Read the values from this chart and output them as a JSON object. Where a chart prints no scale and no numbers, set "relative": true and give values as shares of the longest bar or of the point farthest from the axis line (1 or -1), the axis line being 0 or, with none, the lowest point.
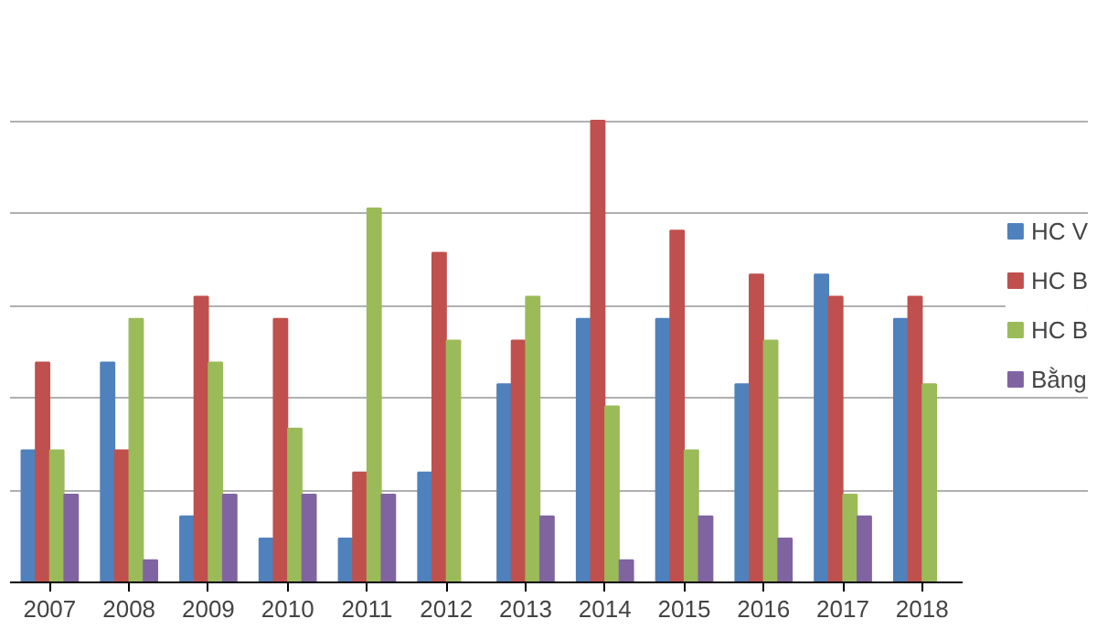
{
  "chart_data": {
    "type": "bar",
    "relative": true,
    "grid": "y",
    "legend": "right",
    "categories": [
      "2007",
      "2008",
      "2009",
      "2010",
      "2011",
      "2012",
      "2013",
      "2014",
      "2015",
      "2016",
      "2017",
      "2018"
    ],
    "series": [
      {
        "name": "HC V",
        "color": "#4f81bd",
        "values": [
          0.286,
          0.476,
          0.143,
          0.095,
          0.095,
          0.238,
          0.429,
          0.571,
          0.571,
          0.429,
          0.667,
          0.571
        ]
      },
      {
        "name": "HC B",
        "color": "#c0504d",
        "values": [
          0.476,
          0.286,
          0.619,
          0.571,
          0.238,
          0.714,
          0.524,
          1,
          0.762,
          0.667,
          0.619,
          0.619
        ]
      },
      {
        "name": "HC B",
        "color": "#9bbb59",
        "values": [
          0.286,
          0.571,
          0.476,
          0.333,
          0.81,
          0.524,
          0.619,
          0.381,
          0.286,
          0.524,
          0.19,
          0.429
        ]
      },
      {
        "name": "Bằng",
        "color": "#8064a2",
        "values": [
          0.19,
          0.048,
          0.19,
          0.19,
          0.19,
          0,
          0.143,
          0.048,
          0.143,
          0.095,
          0.143,
          0
        ]
      }
    ]
  }
}
